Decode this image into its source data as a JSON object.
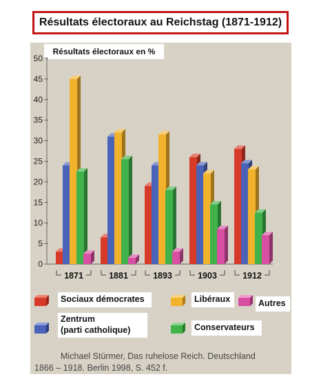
{
  "title": "Résultats électoraux au Reichstag (1871-1912)",
  "source": {
    "line1": "Michael Stürmer, Das ruhelose Reich. Deutschland",
    "line2": "1866 – 1918. Berlin 1998, S. 452 f."
  },
  "legend": {
    "sd": "Sociaux démocrates",
    "lib": "Libéraux",
    "autres": "Autres",
    "zentrum_l1": "Zentrum",
    "zentrum_l2": "(parti catholique)",
    "cons": "Conservateurs"
  },
  "chart_data": {
    "type": "bar",
    "ylabel": "Résultats électoraux en %",
    "ylim": [
      0,
      50
    ],
    "yticks": [
      0,
      5,
      10,
      15,
      20,
      25,
      30,
      35,
      40,
      45,
      50
    ],
    "categories": [
      "1871",
      "1881",
      "1893",
      "1903",
      "1912"
    ],
    "series": [
      {
        "name": "Sociaux démocrates",
        "color": "#d83a2a",
        "values": [
          3,
          6.5,
          19,
          26,
          28
        ]
      },
      {
        "name": "Zentrum (parti catholique)",
        "color": "#4a63b8",
        "values": [
          24,
          31,
          24,
          24,
          24.5
        ]
      },
      {
        "name": "Libéraux",
        "color": "#f2b22c",
        "values": [
          45,
          32,
          31.5,
          22,
          23
        ]
      },
      {
        "name": "Conservateurs",
        "color": "#3fb34a",
        "values": [
          22.5,
          25.5,
          18,
          14.5,
          12.5
        ]
      },
      {
        "name": "Autres",
        "color": "#d94fa3",
        "values": [
          2.5,
          1.5,
          3,
          8.5,
          7
        ]
      }
    ]
  }
}
